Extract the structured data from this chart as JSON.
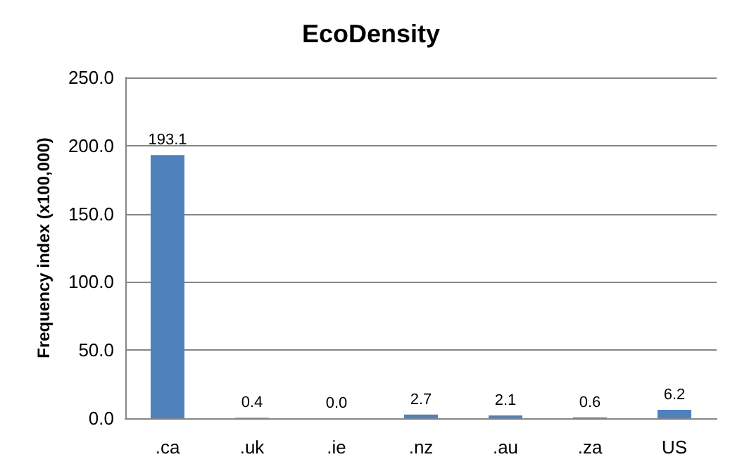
{
  "chart_data": {
    "type": "bar",
    "title": "EcoDensity",
    "ylabel": "Frequency index (x100,000)",
    "categories": [
      ".ca",
      ".uk",
      ".ie",
      ".nz",
      ".au",
      ".za",
      "US"
    ],
    "values": [
      193.1,
      0.4,
      0.0,
      2.7,
      2.1,
      0.6,
      6.2
    ],
    "value_labels": [
      "193.1",
      "0.4",
      "0.0",
      "2.7",
      "2.1",
      "0.6",
      "6.2"
    ],
    "color": "#4f81bd",
    "ylim": [
      0,
      250
    ],
    "yticks": [
      {
        "value": 0,
        "label": "0.0"
      },
      {
        "value": 50,
        "label": "50.0"
      },
      {
        "value": 100,
        "label": "100.0"
      },
      {
        "value": 150,
        "label": "150.0"
      },
      {
        "value": 200,
        "label": "200.0"
      },
      {
        "value": 250,
        "label": "250.0"
      }
    ],
    "grid": "y"
  }
}
